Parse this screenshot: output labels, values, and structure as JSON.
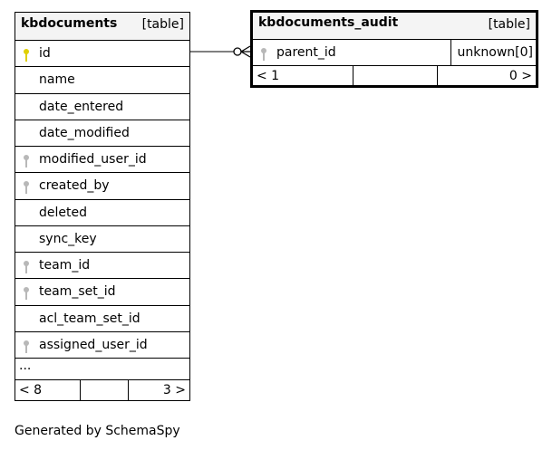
{
  "tables": [
    {
      "name": "kbdocuments",
      "kind": "[table]",
      "columns": [
        {
          "name": "id",
          "key": "primary"
        },
        {
          "name": "name",
          "key": ""
        },
        {
          "name": "date_entered",
          "key": ""
        },
        {
          "name": "date_modified",
          "key": ""
        },
        {
          "name": "modified_user_id",
          "key": "foreign"
        },
        {
          "name": "created_by",
          "key": "foreign"
        },
        {
          "name": "deleted",
          "key": ""
        },
        {
          "name": "sync_key",
          "key": ""
        },
        {
          "name": "team_id",
          "key": "foreign"
        },
        {
          "name": "team_set_id",
          "key": "foreign"
        },
        {
          "name": "acl_team_set_id",
          "key": ""
        },
        {
          "name": "assigned_user_id",
          "key": "foreign"
        }
      ],
      "more": "...",
      "footer": {
        "parents": "< 8",
        "rows": "",
        "children": "3 >"
      }
    },
    {
      "name": "kbdocuments_audit",
      "kind": "[table]",
      "columns": [
        {
          "name": "parent_id",
          "key": "foreign",
          "type": "unknown[0]"
        }
      ],
      "footer": {
        "parents": "< 1",
        "rows": "",
        "children": "0 >"
      }
    }
  ],
  "colors": {
    "primary_key": "#e0d000",
    "foreign_key": "#b8b8b8",
    "header": "#f4f4f4"
  },
  "generated_by": "Generated by SchemaSpy"
}
